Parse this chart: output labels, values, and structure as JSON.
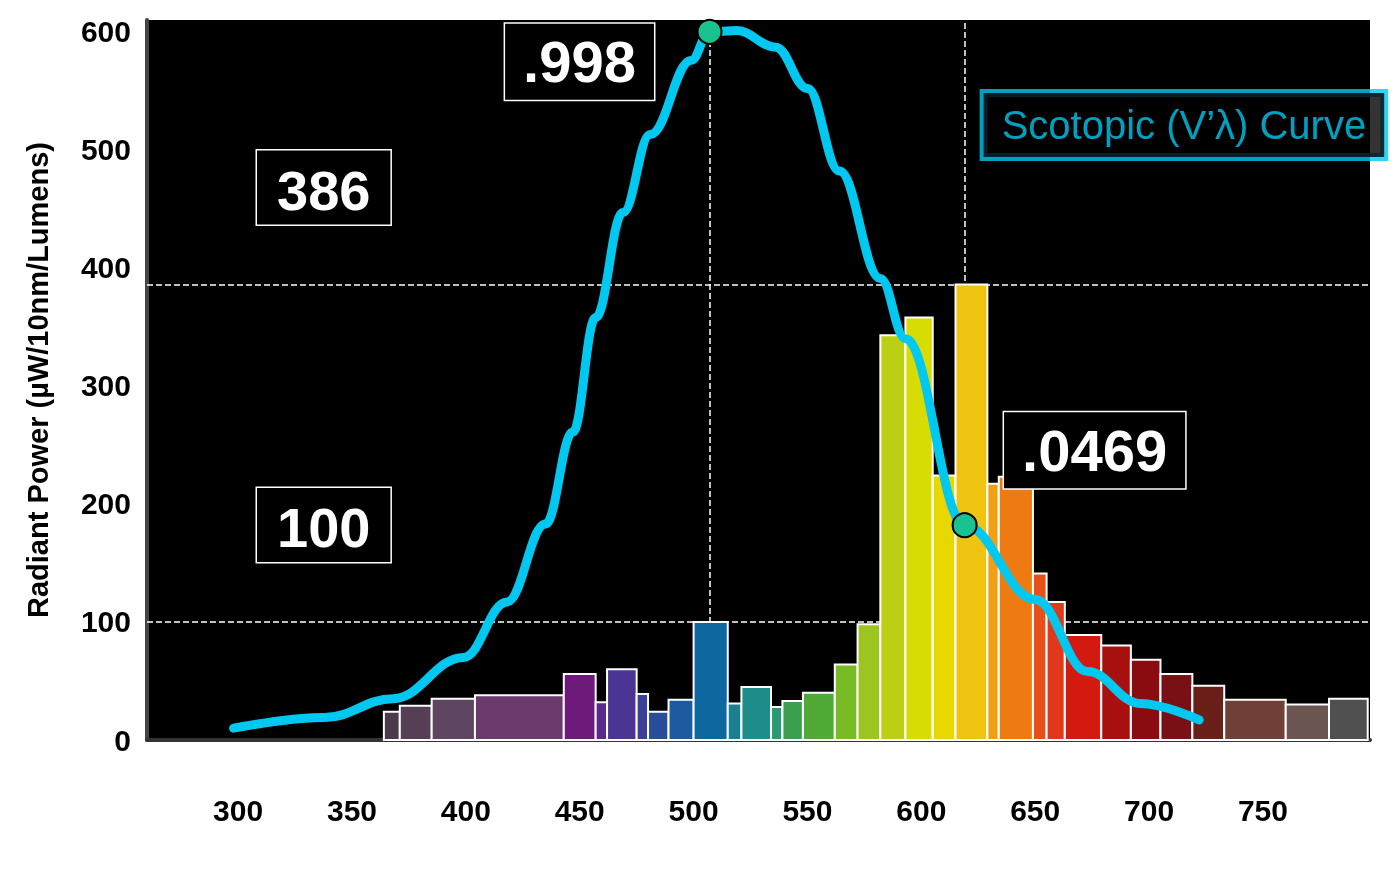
{
  "chart_data": {
    "type": "histogram",
    "ylabel": "Radiant Power (µW/10nm/Lumens)",
    "xlim": [
      260,
      797
    ],
    "xticks": [
      300,
      350,
      400,
      450,
      500,
      550,
      600,
      650,
      700,
      750
    ],
    "ylim": [
      0,
      610
    ],
    "yticks": [
      0,
      100,
      200,
      300,
      400,
      500,
      600
    ],
    "grid": false,
    "legend": false,
    "bins": [
      364,
      371,
      385,
      404,
      443,
      457,
      462,
      475,
      480,
      489,
      500,
      515,
      521,
      534,
      539,
      548,
      562,
      572,
      582,
      593,
      605,
      615,
      629,
      634,
      649,
      655,
      663,
      679,
      692,
      705,
      719,
      733,
      760,
      779,
      796
    ],
    "values": [
      24,
      29,
      35,
      38,
      56,
      32,
      60,
      39,
      24,
      34,
      100,
      31,
      45,
      28,
      33,
      40,
      64,
      98,
      343,
      358,
      224,
      386,
      217,
      223,
      141,
      117,
      89,
      80,
      68,
      56,
      46,
      34,
      30,
      35
    ],
    "colors": [
      "#4a3a4a",
      "#553f55",
      "#5e4560",
      "#6a3a6a",
      "#6e1a7a",
      "#5a2a8a",
      "#4a3595",
      "#3a3f98",
      "#2a4d9a",
      "#1e5aa0",
      "#0d68a0",
      "#1a8090",
      "#1e8c88",
      "#2a9a70",
      "#3aa050",
      "#50aa35",
      "#78bb25",
      "#9cc520",
      "#bbd015",
      "#d8dc05",
      "#e6d800",
      "#eec410",
      "#f0a015",
      "#ee7a12",
      "#e8501a",
      "#e0381a",
      "#d21a10",
      "#a81010",
      "#8a0c10",
      "#781015",
      "#6a2018",
      "#704038",
      "#6a5550",
      "#505050"
    ],
    "series": [
      {
        "type": "line",
        "name": "Scotopic (V’λ) Curve",
        "color": "#00c8f0",
        "x": [
          298,
          338,
          368,
          399,
          418,
          435,
          447,
          457,
          469,
          481,
          499,
          507,
          519,
          536,
          550,
          564,
          582,
          593,
          619,
          650,
          673,
          696,
          722
        ],
        "values": [
          10,
          19,
          35,
          70,
          117,
          183,
          261,
          358,
          447,
          513,
          576,
          600,
          601,
          587,
          552,
          482,
          391,
          340,
          182,
          119,
          58,
          31,
          17
        ]
      }
    ],
    "ref_lines": [
      {
        "axis": "y",
        "value": 386,
        "label": "386",
        "color": "#ffffff",
        "line_style": "dashed"
      },
      {
        "axis": "y",
        "value": 100,
        "label": "100",
        "color": "#ffffff",
        "line_style": "dashed"
      },
      {
        "axis": "x",
        "value": 507,
        "color": "#ffffff",
        "line_style": "dashed"
      },
      {
        "axis": "x",
        "value": 619,
        "color": "#ffffff",
        "line_style": "dashed"
      }
    ],
    "annotations": [
      {
        "text": ".998",
        "x": 507,
        "y": 600
      },
      {
        "text": ".0469",
        "x": 619,
        "y": 182
      }
    ]
  }
}
